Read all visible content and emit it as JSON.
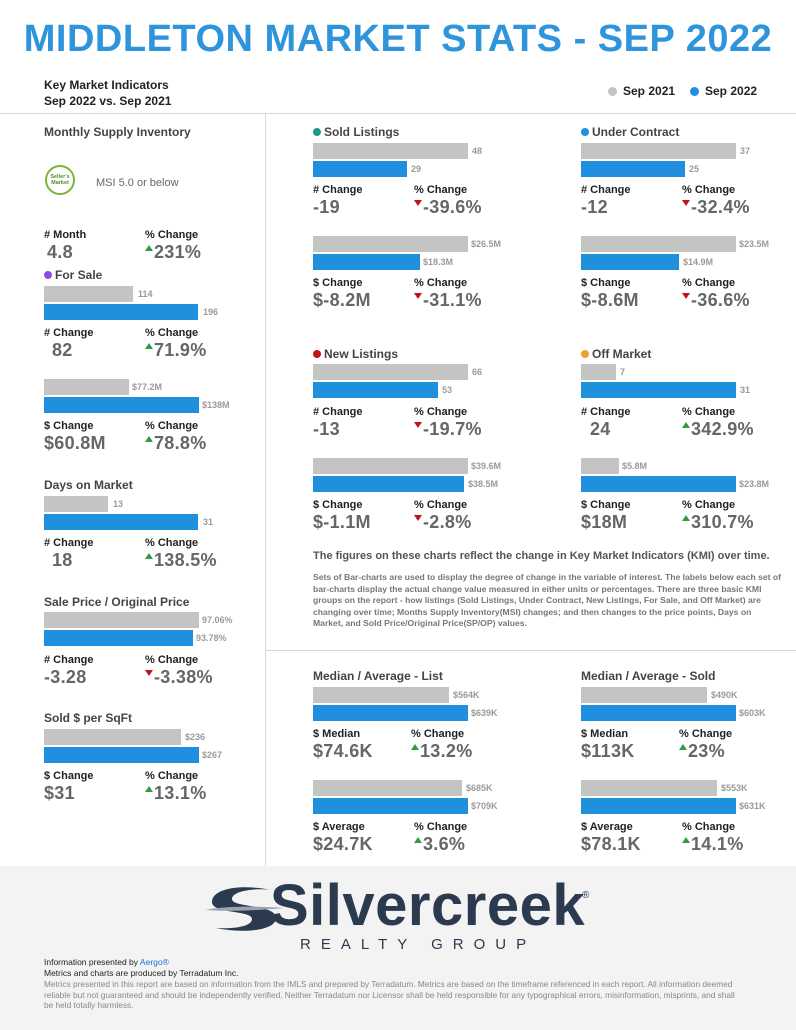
{
  "title": "MIDDLETON MARKET STATS - SEP 2022",
  "kmi": {
    "line1": "Key Market Indicators",
    "line2": "Sep 2022 vs. Sep 2021"
  },
  "legend": {
    "prev": "Sep 2021",
    "curr": "Sep 2022",
    "prev_color": "#c4c4c4",
    "curr_color": "#1f8fde"
  },
  "colors": {
    "up": "#2e9e3a",
    "down": "#c0141c",
    "title": "#2e95dc"
  },
  "supply": {
    "title": "Monthly Supply Inventory",
    "badge": "Seller's Market",
    "msi": "MSI 5.0 or below",
    "month_label": "# Month",
    "month_value": "4.8",
    "pct_label": "% Change",
    "pct_value": "231%"
  },
  "for_sale": {
    "title": "For Sale",
    "dot": "#8a4fd8",
    "count_prev": "114",
    "count_curr": "196",
    "count_change_label": "# Change",
    "count_change": "82",
    "count_pct_label": "% Change",
    "count_pct": "71.9%",
    "vol_prev": "$77.2M",
    "vol_curr": "$138M",
    "vol_change_label": "$ Change",
    "vol_change": "$60.8M",
    "vol_pct_label": "% Change",
    "vol_pct": "78.8%"
  },
  "dom": {
    "title": "Days on Market",
    "prev": "13",
    "curr": "31",
    "change_label": "# Change",
    "change": "18",
    "pct_label": "% Change",
    "pct": "138.5%"
  },
  "spop": {
    "title": "Sale Price / Original Price",
    "prev": "97.06%",
    "curr": "93.78%",
    "change_label": "# Change",
    "change": "-3.28",
    "pct_label": "% Change",
    "pct": "-3.38%"
  },
  "sqft": {
    "title": "Sold $ per SqFt",
    "prev": "$236",
    "curr": "$267",
    "change_label": "$ Change",
    "change": "$31",
    "pct_label": "% Change",
    "pct": "13.1%"
  },
  "sold": {
    "title": "Sold Listings",
    "dot": "#1a9a8a",
    "count_prev": "48",
    "count_curr": "29",
    "count_change_label": "# Change",
    "count_change": "-19",
    "count_pct_label": "% Change",
    "count_pct": "-39.6%",
    "vol_prev": "$26.5M",
    "vol_curr": "$18.3M",
    "vol_change_label": "$ Change",
    "vol_change": "$-8.2M",
    "vol_pct_label": "% Change",
    "vol_pct": "-31.1%"
  },
  "under_contract": {
    "title": "Under Contract",
    "dot": "#1f8fde",
    "count_prev": "37",
    "count_curr": "25",
    "count_change_label": "# Change",
    "count_change": "-12",
    "count_pct_label": "% Change",
    "count_pct": "-32.4%",
    "vol_prev": "$23.5M",
    "vol_curr": "$14.9M",
    "vol_change_label": "$ Change",
    "vol_change": "$-8.6M",
    "vol_pct_label": "% Change",
    "vol_pct": "-36.6%"
  },
  "new_listings": {
    "title": "New Listings",
    "dot": "#c0141c",
    "count_prev": "66",
    "count_curr": "53",
    "count_change_label": "# Change",
    "count_change": "-13",
    "count_pct_label": "% Change",
    "count_pct": "-19.7%",
    "vol_prev": "$39.6M",
    "vol_curr": "$38.5M",
    "vol_change_label": "$ Change",
    "vol_change": "$-1.1M",
    "vol_pct_label": "% Change",
    "vol_pct": "-2.8%"
  },
  "off_market": {
    "title": "Off Market",
    "dot": "#f0a030",
    "count_prev": "7",
    "count_curr": "31",
    "count_change_label": "# Change",
    "count_change": "24",
    "count_pct_label": "% Change",
    "count_pct": "342.9%",
    "vol_prev": "$5.8M",
    "vol_curr": "$23.8M",
    "vol_change_label": "$ Change",
    "vol_change": "$18M",
    "vol_pct_label": "% Change",
    "vol_pct": "310.7%"
  },
  "note": {
    "head": "The figures on these charts reflect the change in Key Market Indicators (KMI) over time.",
    "body": "Sets of Bar-charts are used to display the degree of change in the variable of interest. The labels below each set of bar-charts display the actual change value measured in either units or percentages. There are three basic KMI groups on the report - how listings (Sold Listings, Under Contract, New Listings, For Sale, and Off Market) are changing over time; Months Supply Inventory(MSI) changes; and then changes to the price points, Days on Market, and Sold Price/Original Price(SP/OP) values."
  },
  "list_prices": {
    "title": "Median / Average - List",
    "median_prev": "$564K",
    "median_curr": "$639K",
    "median_label": "$ Median",
    "median_change": "$74.6K",
    "median_pct_label": "% Change",
    "median_pct": "13.2%",
    "avg_prev": "$685K",
    "avg_curr": "$709K",
    "avg_label": "$ Average",
    "avg_change": "$24.7K",
    "avg_pct_label": "% Change",
    "avg_pct": "3.6%"
  },
  "sold_prices": {
    "title": "Median / Average - Sold",
    "median_prev": "$490K",
    "median_curr": "$603K",
    "median_label": "$ Median",
    "median_change": "$113K",
    "median_pct_label": "% Change",
    "median_pct": "23%",
    "avg_prev": "$553K",
    "avg_curr": "$631K",
    "avg_label": "$ Average",
    "avg_change": "$78.1K",
    "avg_pct_label": "% Change",
    "avg_pct": "14.1%"
  },
  "logo": {
    "word": "Silvercreek",
    "sub": "REALTY GROUP",
    "reg": "®"
  },
  "footer": {
    "presented_prefix": "Information presented by ",
    "presented_link": "Aergo®",
    "produced": "Metrics and charts are produced by Terradatum Inc.",
    "disclaimer": "Metrics presented in this report are based on information from the IMLS and prepared by Terradatum. Metrics are based on the timeframe referenced in each report. All information deemed reliable but not guaranteed and should be independently verified. Neither Terradatum nor Licensor shall be held responsible for any typographical errors, misinformation, misprints, and shall be held totally harmless."
  }
}
